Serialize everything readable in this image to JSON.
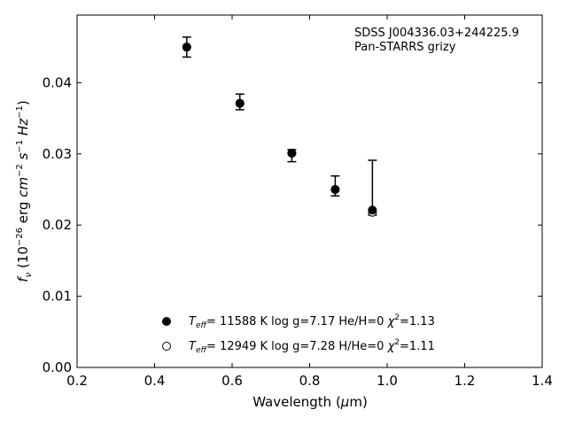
{
  "chart_data": {
    "type": "scatter",
    "xlabel": "Wavelength (μm)",
    "ylabel": "f_ν (10^−26 erg cm^−2 s^−1 Hz^−1)",
    "xlim": [
      0.2,
      1.4
    ],
    "ylim": [
      0.0,
      0.0495
    ],
    "x_ticks": [
      0.2,
      0.4,
      0.6,
      0.8,
      1.0,
      1.2,
      1.4
    ],
    "x_tick_labels": [
      "0.2",
      "0.4",
      "0.6",
      "0.8",
      "1.0",
      "1.2",
      "1.4"
    ],
    "y_ticks": [
      0.0,
      0.01,
      0.02,
      0.03,
      0.04
    ],
    "y_tick_labels": [
      "0.00",
      "0.01",
      "0.02",
      "0.03",
      "0.04"
    ],
    "grid": false,
    "legend_position": "bottom-center",
    "annotation": {
      "line1": "SDSS J004336.03+244225.9",
      "line2": "Pan-STARRS grizy"
    },
    "observed": {
      "x": [
        0.483,
        0.62,
        0.754,
        0.866,
        0.962
      ],
      "y": [
        0.045,
        0.0373,
        0.03,
        0.0255,
        0.022
      ],
      "yerr_low": [
        0.0436,
        0.0362,
        0.0289,
        0.0241,
        0.0214
      ],
      "yerr_high": [
        0.0464,
        0.0384,
        0.0306,
        0.0269,
        0.0291
      ]
    },
    "series": [
      {
        "name": "Teff= 11588 K  log g=7.17  He/H=0  χ2=1.13",
        "marker": "filled-circle",
        "x": [
          0.483,
          0.62,
          0.754,
          0.866,
          0.962
        ],
        "y": [
          0.045,
          0.0371,
          0.0301,
          0.025,
          0.0221
        ]
      },
      {
        "name": "Teff= 12949 K  log g=7.28  H/He=0  χ2=1.11",
        "marker": "open-circle",
        "x": [
          0.483,
          0.62,
          0.754,
          0.866,
          0.962
        ],
        "y": [
          0.045,
          0.0371,
          0.0301,
          0.025,
          0.0218
        ]
      }
    ],
    "legend": [
      {
        "marker": "filled-circle",
        "teff_value": "= 11588 K",
        "rest": "  log g=7.17  He/H=0  ",
        "chi2": "=1.13"
      },
      {
        "marker": "open-circle",
        "teff_value": "= 12949 K",
        "rest": "  log g=7.28  H/He=0  ",
        "chi2": "=1.11"
      }
    ]
  }
}
